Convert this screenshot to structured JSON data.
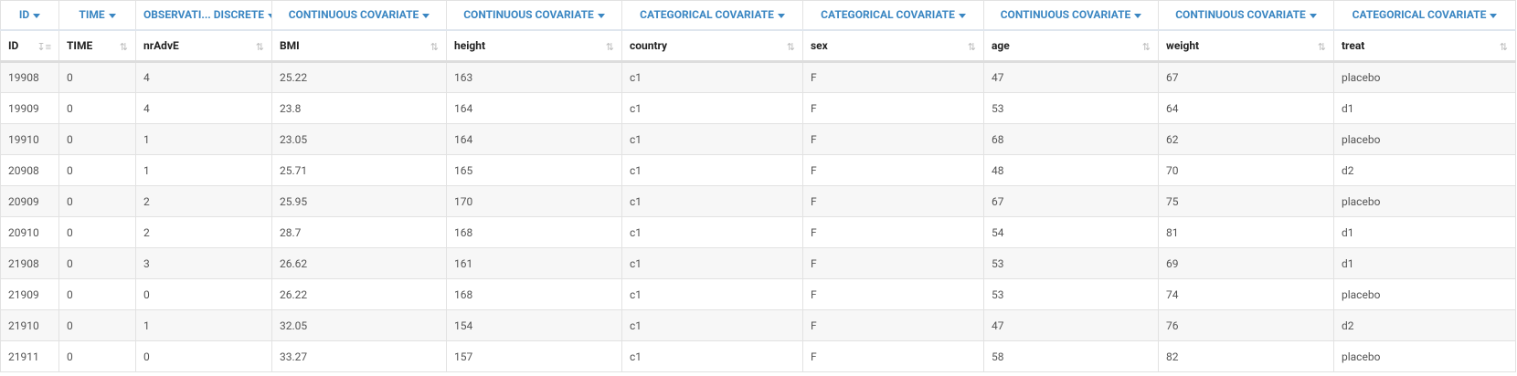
{
  "table": {
    "type_headers": [
      "ID",
      "TIME",
      "OBSERVATI... DISCRETE",
      "CONTINUOUS COVARIATE",
      "CONTINUOUS COVARIATE",
      "CATEGORICAL COVARIATE",
      "CATEGORICAL COVARIATE",
      "CONTINUOUS COVARIATE",
      "CONTINUOUS COVARIATE",
      "CATEGORICAL COVARIATE"
    ],
    "columns": [
      "ID",
      "TIME",
      "nrAdvE",
      "BMI",
      "height",
      "country",
      "sex",
      "age",
      "weight",
      "treat"
    ],
    "rows": [
      [
        19908,
        0,
        4,
        25.22,
        163,
        "c1",
        "F",
        47,
        67,
        "placebo"
      ],
      [
        19909,
        0,
        4,
        23.8,
        164,
        "c1",
        "F",
        53,
        64,
        "d1"
      ],
      [
        19910,
        0,
        1,
        23.05,
        164,
        "c1",
        "F",
        68,
        62,
        "placebo"
      ],
      [
        20908,
        0,
        1,
        25.71,
        165,
        "c1",
        "F",
        48,
        70,
        "d2"
      ],
      [
        20909,
        0,
        2,
        25.95,
        170,
        "c1",
        "F",
        67,
        75,
        "placebo"
      ],
      [
        20910,
        0,
        2,
        28.7,
        168,
        "c1",
        "F",
        54,
        81,
        "d1"
      ],
      [
        21908,
        0,
        3,
        26.62,
        161,
        "c1",
        "F",
        53,
        69,
        "d1"
      ],
      [
        21909,
        0,
        0,
        26.22,
        168,
        "c1",
        "F",
        53,
        74,
        "placebo"
      ],
      [
        21910,
        0,
        1,
        32.05,
        154,
        "c1",
        "F",
        47,
        76,
        "d2"
      ],
      [
        21911,
        0,
        0,
        33.27,
        157,
        "c1",
        "F",
        58,
        82,
        "placebo"
      ]
    ]
  }
}
